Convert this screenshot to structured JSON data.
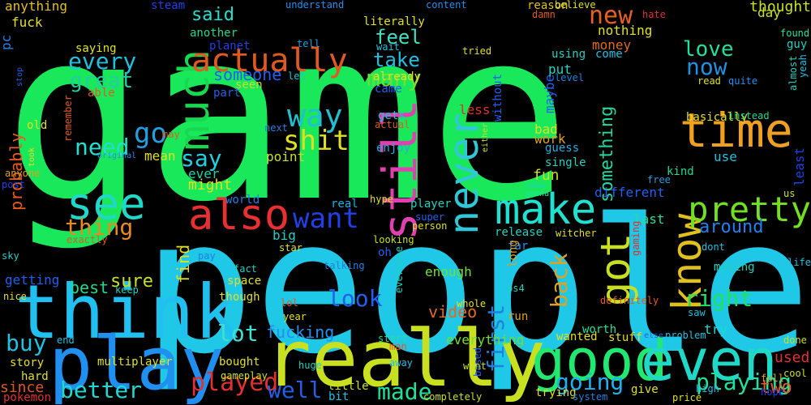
{
  "words": [
    {
      "text": "game",
      "color": "#18e85a"
    },
    {
      "text": "people",
      "color": "#1ec8e6"
    },
    {
      "text": "really",
      "color": "#c8e020"
    },
    {
      "text": "think",
      "color": "#20c0f0"
    },
    {
      "text": "play",
      "color": "#2090f0"
    },
    {
      "text": "good",
      "color": "#20e870"
    },
    {
      "text": "even",
      "color": "#20d8c8"
    },
    {
      "text": "time",
      "color": "#f0a020"
    },
    {
      "text": "much",
      "color": "#18d850"
    },
    {
      "text": "still",
      "color": "#e040b0"
    },
    {
      "text": "never",
      "color": "#30c8d8"
    },
    {
      "text": "make",
      "color": "#20e0d0"
    },
    {
      "text": "see",
      "color": "#20d8c8"
    },
    {
      "text": "also",
      "color": "#e83030"
    },
    {
      "text": "know",
      "color": "#e0c020"
    },
    {
      "text": "got",
      "color": "#c8e020"
    },
    {
      "text": "pretty",
      "color": "#70e020"
    },
    {
      "text": "actually",
      "color": "#e05a20"
    },
    {
      "text": "way",
      "color": "#20c0d0"
    },
    {
      "text": "want",
      "color": "#2040e8"
    },
    {
      "text": "many",
      "color": "#70e030"
    },
    {
      "text": "shit",
      "color": "#e0e020"
    },
    {
      "text": "new",
      "color": "#e86020"
    },
    {
      "text": "now",
      "color": "#2090e0"
    },
    {
      "text": "love",
      "color": "#20e0a0"
    },
    {
      "text": "every",
      "color": "#20c0e0"
    },
    {
      "text": "great",
      "color": "#20d0a0"
    },
    {
      "text": "go",
      "color": "#20a0e0"
    },
    {
      "text": "need",
      "color": "#20e0d0"
    },
    {
      "text": "say",
      "color": "#20d0e0"
    },
    {
      "text": "something",
      "color": "#20d8a0"
    },
    {
      "text": "feel",
      "color": "#40e0c0"
    },
    {
      "text": "take",
      "color": "#20c0e0"
    },
    {
      "text": "thing",
      "color": "#e88a20"
    },
    {
      "text": "lot",
      "color": "#40e0d0"
    },
    {
      "text": "played",
      "color": "#e03030"
    },
    {
      "text": "better",
      "color": "#20d8d0"
    },
    {
      "text": "buy",
      "color": "#20c0e0"
    },
    {
      "text": "going",
      "color": "#20b0f0"
    },
    {
      "text": "made",
      "color": "#20e0a0"
    },
    {
      "text": "well",
      "color": "#2060e8"
    },
    {
      "text": "first",
      "color": "#2080e0"
    },
    {
      "text": "look",
      "color": "#2060f0"
    },
    {
      "text": "back",
      "color": "#e0a020"
    },
    {
      "text": "playing",
      "color": "#20e0a0"
    },
    {
      "text": "right",
      "color": "#20e060"
    },
    {
      "text": "around",
      "color": "#2080f0"
    },
    {
      "text": "sure",
      "color": "#c8e020"
    },
    {
      "text": "said",
      "color": "#20e0d0"
    },
    {
      "text": "someone",
      "color": "#2060f0"
    },
    {
      "text": "probably",
      "color": "#e85a20"
    },
    {
      "text": "fucking",
      "color": "#2090f0"
    },
    {
      "text": "video",
      "color": "#e06a20"
    },
    {
      "text": "find",
      "color": "#e0e020"
    },
    {
      "text": "best",
      "color": "#20d890"
    },
    {
      "text": "two",
      "color": "#e85a20"
    },
    {
      "text": "used",
      "color": "#e03030"
    },
    {
      "text": "thought",
      "color": "#c8e020"
    },
    {
      "text": "money",
      "color": "#e06a20"
    },
    {
      "text": "nothing",
      "color": "#e0e020"
    },
    {
      "text": "different",
      "color": "#2060f0"
    },
    {
      "text": "fun",
      "color": "#c8e020"
    },
    {
      "text": "last",
      "color": "#20e0a0"
    },
    {
      "text": "might",
      "color": "#e0e020"
    },
    {
      "text": "point",
      "color": "#c8e020"
    },
    {
      "text": "ever",
      "color": "#20d0a0"
    },
    {
      "text": "mean",
      "color": "#e0e020"
    },
    {
      "text": "bad",
      "color": "#e0e020"
    },
    {
      "text": "work",
      "color": "#e0a020"
    },
    {
      "text": "maybe",
      "color": "#2060f0"
    },
    {
      "text": "kind",
      "color": "#20d890"
    },
    {
      "text": "day",
      "color": "#c8e020"
    },
    {
      "text": "use",
      "color": "#20c0e0"
    },
    {
      "text": "least",
      "color": "#2040e8"
    },
    {
      "text": "enough",
      "color": "#70e030"
    },
    {
      "text": "everything",
      "color": "#70e030"
    },
    {
      "text": "getting",
      "color": "#2060f0"
    },
    {
      "text": "old",
      "color": "#e0e020"
    },
    {
      "text": "pc",
      "color": "#2080e0"
    },
    {
      "text": "fuck",
      "color": "#e0e020"
    },
    {
      "text": "anything",
      "color": "#e0c020"
    },
    {
      "text": "saying",
      "color": "#e0e020"
    },
    {
      "text": "able",
      "color": "#e05a20"
    },
    {
      "text": "another",
      "color": "#20d890"
    },
    {
      "text": "planet",
      "color": "#2040e8"
    },
    {
      "text": "part",
      "color": "#2060e8"
    },
    {
      "text": "seen",
      "color": "#c8e020"
    },
    {
      "text": "put",
      "color": "#20d0c0"
    },
    {
      "text": "single",
      "color": "#20d0c0"
    },
    {
      "text": "guess",
      "color": "#20b0e0"
    },
    {
      "text": "enjoy",
      "color": "#20b0e0"
    },
    {
      "text": "gets",
      "color": "#20c0e0"
    },
    {
      "text": "already",
      "color": "#e0e020"
    },
    {
      "text": "came",
      "color": "#2060f0"
    },
    {
      "text": "literally",
      "color": "#e0e020"
    },
    {
      "text": "understand",
      "color": "#2090f0"
    },
    {
      "text": "content",
      "color": "#2090f0"
    },
    {
      "text": "reason",
      "color": "#e0c020"
    },
    {
      "text": "damn",
      "color": "#e05a20"
    },
    {
      "text": "believe",
      "color": "#e0e020"
    },
    {
      "text": "hate",
      "color": "#e03030"
    },
    {
      "text": "basically",
      "color": "#e0e020"
    },
    {
      "text": "steam",
      "color": "#2040e8"
    },
    {
      "text": "tell",
      "color": "#20a0e0"
    },
    {
      "text": "wait",
      "color": "#20c0e0"
    },
    {
      "text": "let",
      "color": "#20c0e0"
    },
    {
      "text": "tried",
      "color": "#e0e020"
    },
    {
      "text": "using",
      "color": "#20d0c0"
    },
    {
      "text": "level",
      "color": "#2080e0"
    },
    {
      "text": "come",
      "color": "#20c0e0"
    },
    {
      "text": "read",
      "color": "#e0e020"
    },
    {
      "text": "quite",
      "color": "#2090f0"
    },
    {
      "text": "almost",
      "color": "#20d0c0"
    },
    {
      "text": "yeah",
      "color": "#20c0e0"
    },
    {
      "text": "found",
      "color": "#20e0a0"
    },
    {
      "text": "guy",
      "color": "#20d0c0"
    },
    {
      "text": "instead",
      "color": "#20d890"
    },
    {
      "text": "less",
      "color": "#e03030"
    },
    {
      "text": "without",
      "color": "#2060f0"
    },
    {
      "text": "actual",
      "color": "#e05a20"
    },
    {
      "text": "either",
      "color": "#c8e020"
    },
    {
      "text": "idea",
      "color": "#20d0c0"
    },
    {
      "text": "gonna",
      "color": "#20e0a0"
    },
    {
      "text": "free",
      "color": "#20a0e0"
    },
    {
      "text": "us",
      "color": "#c8e020"
    },
    {
      "text": "remember",
      "color": "#e05a20"
    },
    {
      "text": "next",
      "color": "#2080e0"
    },
    {
      "text": "took",
      "color": "#e0e020"
    },
    {
      "text": "original",
      "color": "#2090f0"
    },
    {
      "text": "may",
      "color": "#e05a20"
    },
    {
      "text": "anyone",
      "color": "#e0a020"
    },
    {
      "text": "post",
      "color": "#2040e8"
    },
    {
      "text": "stop",
      "color": "#2060f0"
    },
    {
      "text": "world",
      "color": "#2080e0"
    },
    {
      "text": "hype",
      "color": "#e0e020"
    },
    {
      "text": "real",
      "color": "#20b0e0"
    },
    {
      "text": "player",
      "color": "#20d0c0"
    },
    {
      "text": "super",
      "color": "#2060f0"
    },
    {
      "text": "person",
      "color": "#e0e020"
    },
    {
      "text": "release",
      "color": "#20d0c0"
    },
    {
      "text": "witcher",
      "color": "#e0e020"
    },
    {
      "text": "big",
      "color": "#20d0c0"
    },
    {
      "text": "star",
      "color": "#e0e020"
    },
    {
      "text": "looking",
      "color": "#c8e020"
    },
    {
      "text": "far",
      "color": "#2090f0"
    },
    {
      "text": "oh",
      "color": "#2060f0"
    },
    {
      "text": "gaming",
      "color": "#e03030"
    },
    {
      "text": "dont",
      "color": "#20c0e0"
    },
    {
      "text": "life",
      "color": "#20c0e0"
    },
    {
      "text": "making",
      "color": "#20d0c0"
    },
    {
      "text": "long",
      "color": "#e0a020"
    },
    {
      "text": "ps4",
      "color": "#20d0c0"
    },
    {
      "text": "fact",
      "color": "#20d0c0"
    },
    {
      "text": "talking",
      "color": "#2080e0"
    },
    {
      "text": "space",
      "color": "#e0e020"
    },
    {
      "text": "though",
      "color": "#e0e020"
    },
    {
      "text": "keep",
      "color": "#20d0c0"
    },
    {
      "text": "lol",
      "color": "#e05a20"
    },
    {
      "text": "year",
      "color": "#e0e020"
    },
    {
      "text": "everyone",
      "color": "#20d0c0"
    },
    {
      "text": "whole",
      "color": "#e0e020"
    },
    {
      "text": "run",
      "color": "#e0a020"
    },
    {
      "text": "definitely",
      "color": "#e05a20"
    },
    {
      "text": "saw",
      "color": "#20c0e0"
    },
    {
      "text": "else",
      "color": "#2060f0"
    },
    {
      "text": "problem",
      "color": "#20c0e0"
    },
    {
      "text": "done",
      "color": "#c8e020"
    },
    {
      "text": "cool",
      "color": "#c8e020"
    },
    {
      "text": "full",
      "color": "#e0a020"
    },
    {
      "text": "hope",
      "color": "#2040e8"
    },
    {
      "text": "high",
      "color": "#20c0e0"
    },
    {
      "text": "price",
      "color": "#e0e020"
    },
    {
      "text": "give",
      "color": "#e0e020"
    },
    {
      "text": "stuff",
      "color": "#e0e020"
    },
    {
      "text": "worth",
      "color": "#20e0a0"
    },
    {
      "text": "wanted",
      "color": "#e0e020"
    },
    {
      "text": "start",
      "color": "#20e0a0"
    },
    {
      "text": "try",
      "color": "#20d8d0"
    },
    {
      "text": "trying",
      "color": "#e0e020"
    },
    {
      "text": "system",
      "color": "#2080e0"
    },
    {
      "text": "based",
      "color": "#2060f0"
    },
    {
      "text": "went",
      "color": "#c8e020"
    },
    {
      "text": "completely",
      "color": "#c8e020"
    },
    {
      "text": "man",
      "color": "#e05a20"
    },
    {
      "text": "away",
      "color": "#20c0e0"
    },
    {
      "text": "huge",
      "color": "#20d0c0"
    },
    {
      "text": "bit",
      "color": "#20c0e0"
    },
    {
      "text": "little",
      "color": "#c8e020"
    },
    {
      "text": "bought",
      "color": "#e0e020"
    },
    {
      "text": "gameplay",
      "color": "#c8e020"
    },
    {
      "text": "multiplayer",
      "color": "#e0e020"
    },
    {
      "text": "end",
      "color": "#20c0e0"
    },
    {
      "text": "story",
      "color": "#e0e020"
    },
    {
      "text": "hard",
      "color": "#e0e020"
    },
    {
      "text": "since",
      "color": "#e05a20"
    },
    {
      "text": "pokemon",
      "color": "#e03030"
    },
    {
      "text": "nice",
      "color": "#e0e020"
    },
    {
      "text": "exactly",
      "color": "#e05a20"
    },
    {
      "text": "pay",
      "color": "#2080e0"
    },
    {
      "text": "sky",
      "color": "#20d0c0"
    }
  ]
}
